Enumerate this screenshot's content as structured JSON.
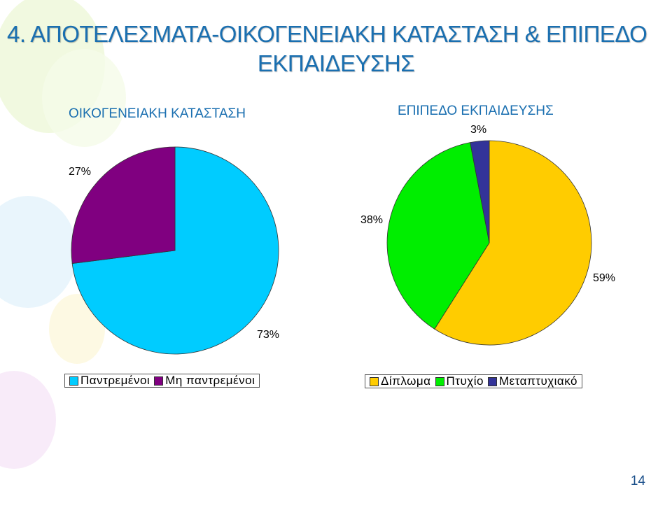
{
  "slide": {
    "title_line_1": "4.    ΑΠΟΤΕΛΕΣΜΑΤΑ-ΟΙΚΟΓΕΝΕΙΑΚΗ ΚΑΤΑΣΤΑΣΗ & ΕΠΙΠΕΔΟ",
    "title_line_2": "ΕΚΠΑΙΔΕΥΣΗΣ",
    "page_number": "14"
  },
  "chart_data": [
    {
      "type": "pie",
      "title": "ΟΙΚΟΓΕΝΕΙΑΚΗ ΚΑΤΑΣΤΑΣΗ",
      "legend_position": "bottom",
      "categories": [
        "Παντρεμένοι",
        "Μη παντρεμένοι"
      ],
      "values": [
        73,
        27
      ],
      "labels": [
        "73%",
        "27%"
      ],
      "colors": [
        "#00ccff",
        "#800080"
      ]
    },
    {
      "type": "pie",
      "title": "ΕΠΙΠΕΔΟ ΕΚΠΑΙΔΕΥΣΗΣ",
      "legend_position": "bottom",
      "categories": [
        "Δίπλωμα",
        "Πτυχίο",
        "Μεταπτυχιακό"
      ],
      "values": [
        59,
        38,
        3
      ],
      "labels": [
        "59%",
        "38%",
        "3%"
      ],
      "colors": [
        "#ffcc00",
        "#00ee00",
        "#333399"
      ]
    }
  ]
}
